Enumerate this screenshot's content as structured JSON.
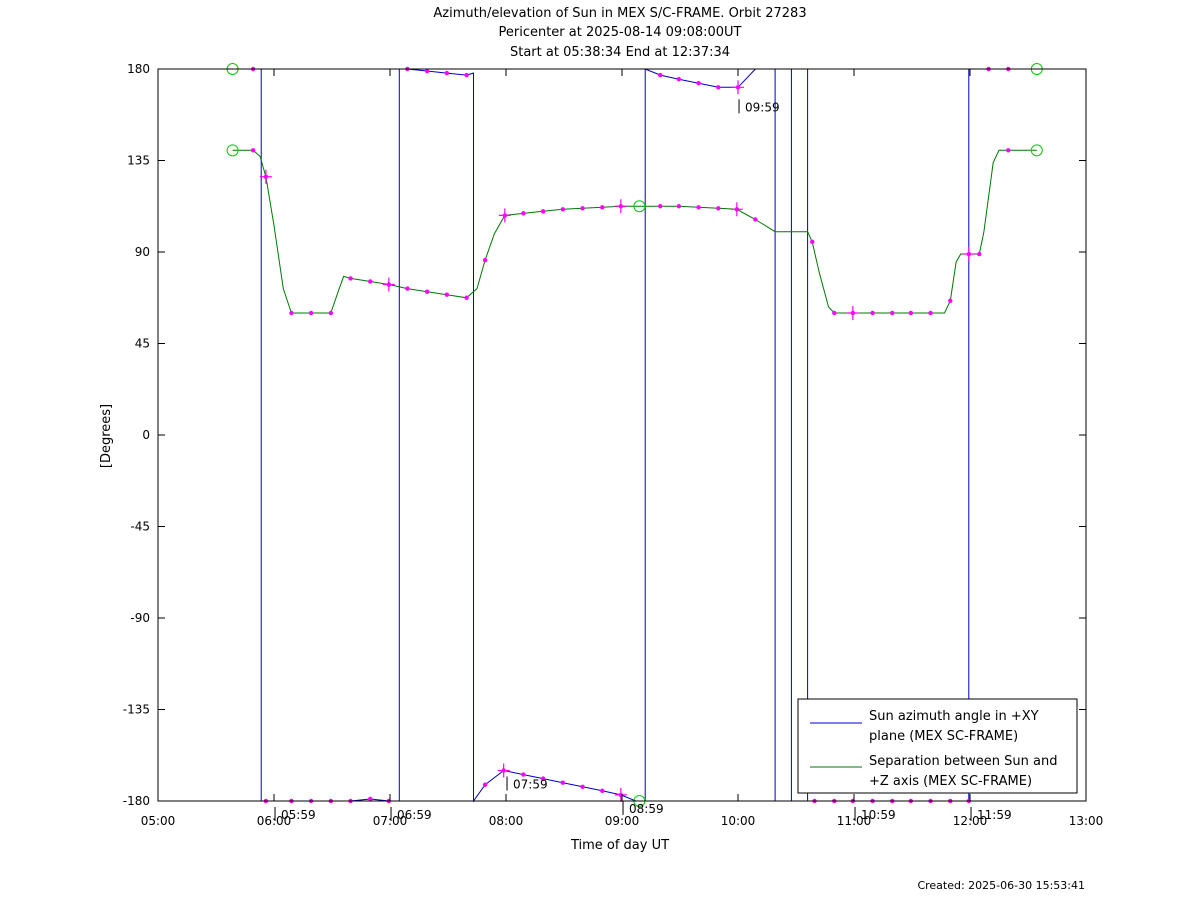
{
  "chart_data": {
    "type": "line",
    "title_lines": [
      "Azimuth/elevation of Sun in MEX S/C-FRAME.  Orbit 27283",
      "Pericenter at 2025-08-14 09:08:00UT",
      "Start at 05:38:34 End at 12:37:34"
    ],
    "xlabel": "Time of day UT",
    "ylabel": "[Degrees]",
    "xlim": [
      5.0,
      13.0
    ],
    "ylim": [
      -180,
      180
    ],
    "x_ticks": [
      {
        "value": 5,
        "label": "05:00"
      },
      {
        "value": 6,
        "label": "06:00"
      },
      {
        "value": 7,
        "label": "07:00"
      },
      {
        "value": 8,
        "label": "08:00"
      },
      {
        "value": 9,
        "label": "09:00"
      },
      {
        "value": 10,
        "label": "10:00"
      },
      {
        "value": 11,
        "label": "11:00"
      },
      {
        "value": 12,
        "label": "12:00"
      },
      {
        "value": 13,
        "label": "13:00"
      }
    ],
    "y_ticks": [
      {
        "value": 180,
        "label": "180"
      },
      {
        "value": 135,
        "label": "135"
      },
      {
        "value": 90,
        "label": "90"
      },
      {
        "value": 45,
        "label": "45"
      },
      {
        "value": 0,
        "label": "0"
      },
      {
        "value": -45,
        "label": "-45"
      },
      {
        "value": -90,
        "label": "-90"
      },
      {
        "value": -135,
        "label": "-135"
      },
      {
        "value": -180,
        "label": "-180"
      }
    ],
    "series": [
      {
        "name": "Sun azimuth angle in +XY plane (MEX SC-FRAME)",
        "color": "#0000cc",
        "points": [
          [
            5.643,
            180
          ],
          [
            5.82,
            180
          ],
          [
            5.89,
            180
          ],
          [
            5.89,
            -180
          ],
          [
            5.93,
            -180
          ],
          [
            6.15,
            -180
          ],
          [
            6.32,
            -180
          ],
          [
            6.49,
            -180
          ],
          [
            6.66,
            -180
          ],
          [
            6.83,
            -179
          ],
          [
            6.99,
            -180
          ],
          [
            7.08,
            -180
          ],
          [
            7.08,
            180
          ],
          [
            7.15,
            180
          ],
          [
            7.32,
            179
          ],
          [
            7.49,
            178
          ],
          [
            7.66,
            177
          ],
          [
            7.72,
            178
          ],
          [
            7.72,
            -180
          ],
          [
            7.82,
            -172
          ],
          [
            7.98,
            -165
          ],
          [
            8.15,
            -167
          ],
          [
            8.32,
            -169
          ],
          [
            8.49,
            -171
          ],
          [
            8.66,
            -173
          ],
          [
            8.83,
            -175
          ],
          [
            8.99,
            -177
          ],
          [
            9.12,
            -180
          ],
          [
            9.2,
            -180
          ],
          [
            9.2,
            180
          ],
          [
            9.33,
            177
          ],
          [
            9.49,
            175
          ],
          [
            9.66,
            173
          ],
          [
            9.83,
            171
          ],
          [
            10.0,
            171
          ],
          [
            10.15,
            180
          ],
          [
            10.32,
            180
          ],
          [
            10.32,
            -180
          ],
          [
            10.46,
            -180
          ],
          [
            10.46,
            180
          ],
          [
            10.6,
            180
          ],
          [
            10.6,
            -180
          ],
          [
            10.66,
            -180
          ],
          [
            10.83,
            -180
          ],
          [
            10.99,
            -180
          ],
          [
            11.16,
            -180
          ],
          [
            11.33,
            -180
          ],
          [
            11.49,
            -180
          ],
          [
            11.66,
            -180
          ],
          [
            11.83,
            -180
          ],
          [
            11.99,
            -180
          ],
          [
            11.99,
            180
          ],
          [
            12.16,
            180
          ],
          [
            12.33,
            180
          ],
          [
            12.576,
            180
          ]
        ],
        "markers": [
          [
            5.82,
            180
          ],
          [
            5.93,
            -180
          ],
          [
            6.15,
            -180
          ],
          [
            6.32,
            -180
          ],
          [
            6.49,
            -180
          ],
          [
            6.66,
            -180
          ],
          [
            6.83,
            -179
          ],
          [
            6.99,
            -180
          ],
          [
            7.15,
            180
          ],
          [
            7.32,
            179
          ],
          [
            7.49,
            178
          ],
          [
            7.66,
            177
          ],
          [
            7.82,
            -172
          ],
          [
            7.98,
            -165
          ],
          [
            8.15,
            -167
          ],
          [
            8.32,
            -169
          ],
          [
            8.49,
            -171
          ],
          [
            8.66,
            -173
          ],
          [
            8.83,
            -175
          ],
          [
            8.99,
            -177
          ],
          [
            9.33,
            177
          ],
          [
            9.49,
            175
          ],
          [
            9.66,
            173
          ],
          [
            9.83,
            171
          ],
          [
            10.0,
            171
          ],
          [
            10.66,
            -180
          ],
          [
            10.83,
            -180
          ],
          [
            10.99,
            -180
          ],
          [
            11.16,
            -180
          ],
          [
            11.33,
            -180
          ],
          [
            11.49,
            -180
          ],
          [
            11.66,
            -180
          ],
          [
            11.83,
            -180
          ],
          [
            11.99,
            -180
          ],
          [
            12.16,
            180
          ],
          [
            12.33,
            180
          ]
        ],
        "plus_markers": [
          [
            7.98,
            -165
          ],
          [
            8.99,
            -177
          ],
          [
            10.0,
            171
          ]
        ],
        "circle_markers": [
          [
            5.643,
            180
          ],
          [
            9.15,
            -180
          ],
          [
            12.576,
            180
          ]
        ]
      },
      {
        "name": "Separation between Sun and +Z axis (MEX SC-FRAME)",
        "color": "#007700",
        "points": [
          [
            5.643,
            140
          ],
          [
            5.82,
            140
          ],
          [
            5.88,
            137
          ],
          [
            5.93,
            127
          ],
          [
            6.0,
            103
          ],
          [
            6.08,
            72
          ],
          [
            6.15,
            60
          ],
          [
            6.32,
            60
          ],
          [
            6.49,
            60
          ],
          [
            6.55,
            70
          ],
          [
            6.6,
            78
          ],
          [
            6.66,
            77
          ],
          [
            6.83,
            75.5
          ],
          [
            6.99,
            74
          ],
          [
            7.15,
            72
          ],
          [
            7.32,
            70.5
          ],
          [
            7.49,
            69
          ],
          [
            7.66,
            67.5
          ],
          [
            7.75,
            72
          ],
          [
            7.82,
            86
          ],
          [
            7.9,
            99
          ],
          [
            7.99,
            108
          ],
          [
            8.15,
            109
          ],
          [
            8.32,
            110
          ],
          [
            8.49,
            111
          ],
          [
            8.66,
            111.5
          ],
          [
            8.83,
            112
          ],
          [
            8.99,
            112.5
          ],
          [
            9.15,
            112.5
          ],
          [
            9.33,
            112.5
          ],
          [
            9.49,
            112.5
          ],
          [
            9.66,
            112
          ],
          [
            9.83,
            111.5
          ],
          [
            9.99,
            111
          ],
          [
            10.15,
            106
          ],
          [
            10.32,
            100
          ],
          [
            10.46,
            100
          ],
          [
            10.6,
            100
          ],
          [
            10.64,
            95
          ],
          [
            10.7,
            80
          ],
          [
            10.78,
            63
          ],
          [
            10.83,
            60
          ],
          [
            10.99,
            60
          ],
          [
            11.16,
            60
          ],
          [
            11.33,
            60
          ],
          [
            11.49,
            60
          ],
          [
            11.66,
            60
          ],
          [
            11.78,
            60
          ],
          [
            11.83,
            66
          ],
          [
            11.88,
            85
          ],
          [
            11.92,
            89
          ],
          [
            11.99,
            89
          ],
          [
            12.08,
            89
          ],
          [
            12.12,
            100
          ],
          [
            12.2,
            134
          ],
          [
            12.25,
            140
          ],
          [
            12.576,
            140
          ]
        ],
        "markers": [
          [
            5.82,
            140
          ],
          [
            5.93,
            127
          ],
          [
            6.15,
            60
          ],
          [
            6.32,
            60
          ],
          [
            6.49,
            60
          ],
          [
            6.66,
            77
          ],
          [
            6.83,
            75.5
          ],
          [
            6.99,
            74
          ],
          [
            7.15,
            72
          ],
          [
            7.32,
            70.5
          ],
          [
            7.49,
            69
          ],
          [
            7.66,
            67.5
          ],
          [
            7.82,
            86
          ],
          [
            7.99,
            108
          ],
          [
            8.15,
            109
          ],
          [
            8.32,
            110
          ],
          [
            8.49,
            111
          ],
          [
            8.66,
            111.5
          ],
          [
            8.83,
            112
          ],
          [
            8.99,
            112.5
          ],
          [
            9.33,
            112.5
          ],
          [
            9.49,
            112.5
          ],
          [
            9.66,
            112
          ],
          [
            9.83,
            111.5
          ],
          [
            9.99,
            111
          ],
          [
            10.15,
            106
          ],
          [
            10.64,
            95
          ],
          [
            10.83,
            60
          ],
          [
            10.99,
            60
          ],
          [
            11.16,
            60
          ],
          [
            11.33,
            60
          ],
          [
            11.49,
            60
          ],
          [
            11.66,
            60
          ],
          [
            11.83,
            66
          ],
          [
            11.99,
            89
          ],
          [
            12.08,
            89
          ],
          [
            12.33,
            140
          ]
        ],
        "plus_markers": [
          [
            5.93,
            127
          ],
          [
            6.99,
            74
          ],
          [
            7.99,
            108
          ],
          [
            8.99,
            112.5
          ],
          [
            9.99,
            111
          ],
          [
            10.99,
            60
          ],
          [
            11.99,
            89
          ]
        ],
        "circle_markers": [
          [
            5.643,
            140
          ],
          [
            9.15,
            112.5
          ],
          [
            12.576,
            140
          ]
        ]
      }
    ],
    "time_annotations": [
      {
        "x": 5.983,
        "y": -180,
        "label": "05:59"
      },
      {
        "x": 6.983,
        "y": -180,
        "label": "06:59"
      },
      {
        "x": 7.983,
        "y": -165,
        "label": "07:59"
      },
      {
        "x": 8.983,
        "y": -177,
        "label": "08:59"
      },
      {
        "x": 9.983,
        "y": 171,
        "label": "09:59"
      },
      {
        "x": 10.983,
        "y": -180,
        "label": "10:59"
      },
      {
        "x": 11.983,
        "y": -180,
        "label": "11:59"
      }
    ],
    "legend": {
      "placement": "bottom-right",
      "entries": [
        {
          "line1": "Sun azimuth angle in +XY",
          "line2": "plane (MEX SC-FRAME)",
          "color": "#0000cc"
        },
        {
          "line1": "Separation between Sun and",
          "line2": "+Z axis (MEX SC-FRAME)",
          "color": "#007700"
        }
      ]
    },
    "marker_color": "#ff00ff",
    "circle_color": "#00cc00",
    "grid": false
  },
  "footer": {
    "created": "Created: 2025-06-30 15:53:41"
  }
}
